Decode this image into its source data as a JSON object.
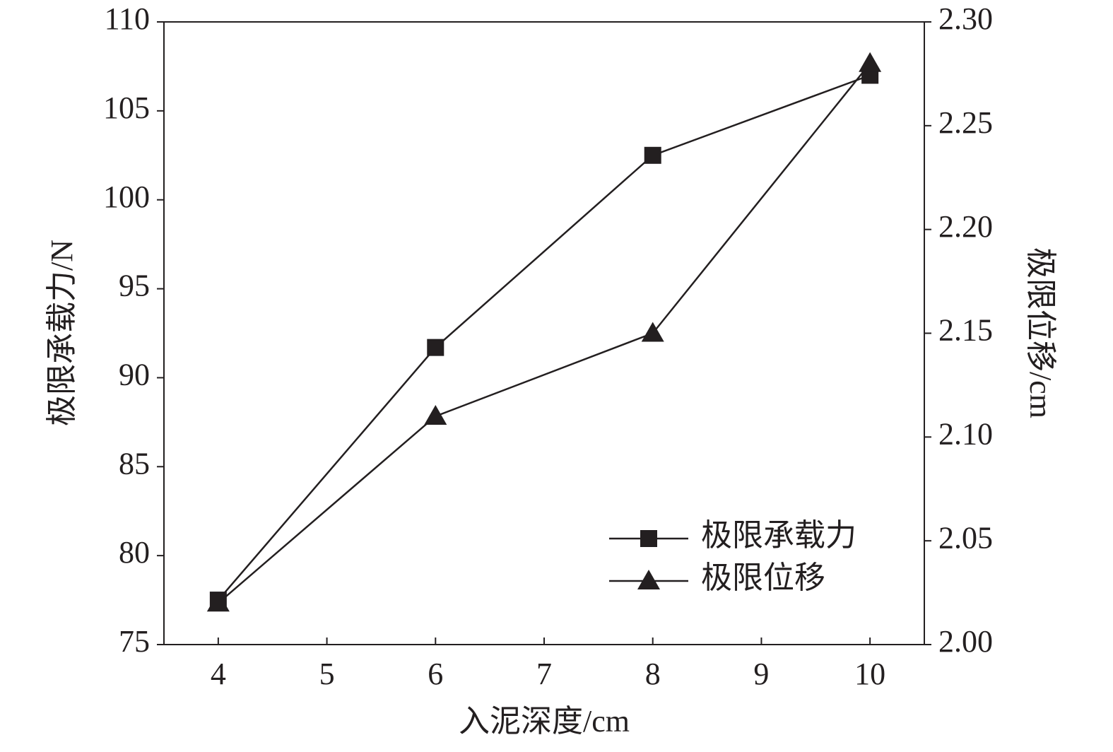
{
  "chart_data": {
    "type": "line",
    "x_label": "入泥深度/cm",
    "y_label": "极限承载力/N",
    "y2_label": "极限位移/cm",
    "x": [
      4,
      6,
      8,
      10
    ],
    "series": [
      {
        "name": "极限承载力",
        "color": "#231f20",
        "marker": "square",
        "values": [
          77.5,
          91.7,
          102.5,
          107.0
        ]
      },
      {
        "name": "极限位移",
        "color": "#231f20",
        "marker": "triangle",
        "axis": "y2",
        "values": [
          2.02,
          2.11,
          2.15,
          2.28
        ]
      }
    ],
    "xlim": [
      3.5,
      10.5
    ],
    "xticks": [
      4,
      5,
      6,
      7,
      8,
      9,
      10
    ],
    "ylim": [
      75,
      110
    ],
    "yticks": [
      75,
      80,
      85,
      90,
      95,
      100,
      105,
      110
    ],
    "y2lim": [
      2.0,
      2.3
    ],
    "y2ticks": [
      {
        "value": 2.0,
        "label": "2.00"
      },
      2.05,
      {
        "value": 2.1,
        "label": "2.10"
      },
      2.15,
      {
        "value": 2.2,
        "label": "2.20"
      },
      2.25,
      {
        "value": 2.3,
        "label": "2.30"
      }
    ],
    "legend": "lower right",
    "grid": false
  }
}
